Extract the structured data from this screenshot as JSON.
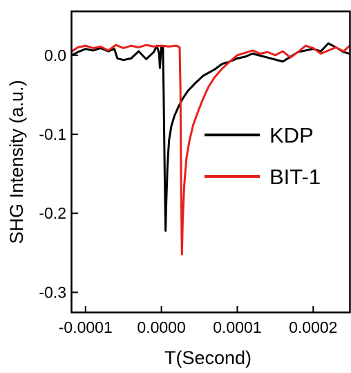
{
  "chart_data": {
    "type": "line",
    "xlabel": "T(Second)",
    "ylabel": "SHG Intensity (a.u.)",
    "xlim": [
      -0.000118,
      0.000248
    ],
    "ylim": [
      -0.325,
      0.055
    ],
    "x_ticks": [
      {
        "value": -0.0001,
        "label": "-0.0001"
      },
      {
        "value": 0.0,
        "label": "0.0000"
      },
      {
        "value": 0.0001,
        "label": "0.0001"
      },
      {
        "value": 0.0002,
        "label": "0.0002"
      }
    ],
    "y_ticks": [
      {
        "value": 0.0,
        "label": "0.0"
      },
      {
        "value": -0.1,
        "label": "-0.1"
      },
      {
        "value": -0.2,
        "label": "-0.2"
      },
      {
        "value": -0.3,
        "label": "-0.3"
      }
    ],
    "legend": {
      "position": "center-right"
    },
    "series": [
      {
        "name": "KDP",
        "color": "#000000",
        "points": [
          [
            -0.000118,
            0.0
          ],
          [
            -0.00011,
            0.004
          ],
          [
            -0.0001,
            0.008
          ],
          [
            -9e-05,
            0.006
          ],
          [
            -8e-05,
            0.009
          ],
          [
            -7e-05,
            0.005
          ],
          [
            -6.2e-05,
            0.008
          ],
          [
            -5.8e-05,
            -0.004
          ],
          [
            -5e-05,
            -0.006
          ],
          [
            -4e-05,
            -0.004
          ],
          [
            -3e-05,
            0.005
          ],
          [
            -2e-05,
            -0.005
          ],
          [
            -1e-05,
            0.004
          ],
          [
            -6e-06,
            0.012
          ],
          [
            -3e-06,
            0.002
          ],
          [
            -2e-06,
            -0.016
          ],
          [
            0.0,
            0.012
          ],
          [
            2e-06,
            0.01
          ],
          [
            3e-06,
            -0.05
          ],
          [
            4.5e-06,
            -0.16
          ],
          [
            5.5e-06,
            -0.222
          ],
          [
            6.5e-06,
            -0.185
          ],
          [
            8e-06,
            -0.14
          ],
          [
            1e-05,
            -0.108
          ],
          [
            1.3e-05,
            -0.09
          ],
          [
            1.7e-05,
            -0.077
          ],
          [
            2.2e-05,
            -0.066
          ],
          [
            2.8e-05,
            -0.055
          ],
          [
            3.5e-05,
            -0.045
          ],
          [
            4.5e-05,
            -0.035
          ],
          [
            5.5e-05,
            -0.026
          ],
          [
            7e-05,
            -0.018
          ],
          [
            8e-05,
            -0.011
          ],
          [
            9e-05,
            -0.008
          ],
          [
            0.0001,
            -0.004
          ],
          [
            0.00011,
            -0.002
          ],
          [
            0.00012,
            0.002
          ],
          [
            0.00014,
            -0.003
          ],
          [
            0.00016,
            -0.008
          ],
          [
            0.00018,
            0.004
          ],
          [
            0.0002,
            0.008
          ],
          [
            0.00021,
            0.005
          ],
          [
            0.00022,
            0.015
          ],
          [
            0.00023,
            0.01
          ],
          [
            0.00024,
            0.004
          ],
          [
            0.000248,
            0.002
          ]
        ]
      },
      {
        "name": "BIT-1",
        "color": "#e8201d",
        "points": [
          [
            -0.000118,
            0.005
          ],
          [
            -0.00011,
            0.01
          ],
          [
            -0.0001,
            0.012
          ],
          [
            -9e-05,
            0.009
          ],
          [
            -8e-05,
            0.011
          ],
          [
            -7e-05,
            0.006
          ],
          [
            -6e-05,
            0.013
          ],
          [
            -5e-05,
            0.009
          ],
          [
            -4e-05,
            0.012
          ],
          [
            -3e-05,
            0.01
          ],
          [
            -2e-05,
            0.013
          ],
          [
            -1e-05,
            0.011
          ],
          [
            0.0,
            0.012
          ],
          [
            1e-05,
            0.011
          ],
          [
            2e-05,
            0.012
          ],
          [
            2.4e-05,
            0.01
          ],
          [
            2.5e-05,
            -0.04
          ],
          [
            2.6e-05,
            -0.17
          ],
          [
            2.7e-05,
            -0.252
          ],
          [
            2.8e-05,
            -0.21
          ],
          [
            3e-05,
            -0.165
          ],
          [
            3.3e-05,
            -0.13
          ],
          [
            3.7e-05,
            -0.108
          ],
          [
            4.2e-05,
            -0.088
          ],
          [
            4.8e-05,
            -0.072
          ],
          [
            5.5e-05,
            -0.055
          ],
          [
            6.2e-05,
            -0.04
          ],
          [
            7e-05,
            -0.028
          ],
          [
            8e-05,
            -0.017
          ],
          [
            9e-05,
            -0.008
          ],
          [
            0.0001,
            0.0
          ],
          [
            0.00011,
            0.003
          ],
          [
            0.00012,
            0.006
          ],
          [
            0.00013,
            0.002
          ],
          [
            0.00014,
            0.004
          ],
          [
            0.00015,
            0.0
          ],
          [
            0.00016,
            0.005
          ],
          [
            0.00017,
            -0.003
          ],
          [
            0.00018,
            0.004
          ],
          [
            0.00019,
            0.012
          ],
          [
            0.0002,
            0.009
          ],
          [
            0.00021,
            0.002
          ],
          [
            0.00022,
            0.006
          ],
          [
            0.00023,
            0.01
          ],
          [
            0.00024,
            0.005
          ],
          [
            0.000248,
            0.012
          ]
        ]
      }
    ]
  }
}
